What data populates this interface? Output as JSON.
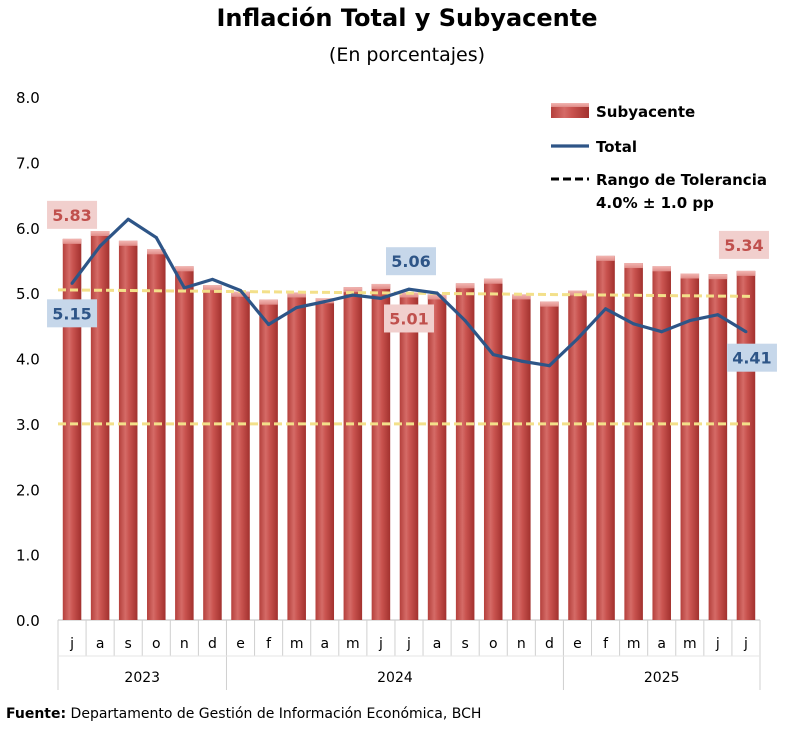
{
  "title": "Inflación Total y Subyacente",
  "subtitle": "(En porcentajes)",
  "source_label": "Fuente:",
  "source_text": "Departamento de Gestión de Información Económica, BCH",
  "chart_data": {
    "type": "bar",
    "ylim": [
      0,
      8
    ],
    "yticks": [
      "0.0",
      "1.0",
      "2.0",
      "3.0",
      "4.0",
      "5.0",
      "6.0",
      "7.0",
      "8.0"
    ],
    "categories": [
      "j",
      "a",
      "s",
      "o",
      "n",
      "d",
      "e",
      "f",
      "m",
      "a",
      "m",
      "j",
      "j",
      "a",
      "s",
      "o",
      "n",
      "d",
      "e",
      "f",
      "m",
      "a",
      "m",
      "j",
      "j"
    ],
    "years": [
      {
        "label": "2023",
        "start": 0,
        "end": 5
      },
      {
        "label": "2024",
        "start": 6,
        "end": 17
      },
      {
        "label": "2025",
        "start": 18,
        "end": 24
      }
    ],
    "series": [
      {
        "name": "Subyacente",
        "kind": "bar",
        "color": "#c0504d",
        "values": [
          5.83,
          5.95,
          5.8,
          5.67,
          5.41,
          5.12,
          5.02,
          4.9,
          5.01,
          4.92,
          5.09,
          5.14,
          5.01,
          4.98,
          5.15,
          5.22,
          4.98,
          4.87,
          5.04,
          5.57,
          5.46,
          5.41,
          5.3,
          5.29,
          5.34
        ]
      },
      {
        "name": "Total",
        "kind": "line",
        "color": "#2e5587",
        "values": [
          5.15,
          5.72,
          6.13,
          5.85,
          5.08,
          5.21,
          5.04,
          4.52,
          4.78,
          4.87,
          4.97,
          4.92,
          5.06,
          5.0,
          4.58,
          4.06,
          3.96,
          3.89,
          4.3,
          4.76,
          4.53,
          4.41,
          4.58,
          4.67,
          4.41
        ]
      }
    ],
    "tolerance": {
      "label_line1": "Rango de Tolerancia",
      "label_line2": "4.0% ± 1.0 pp",
      "lower": 3.0,
      "upper_start": 5.05,
      "upper_end": 4.95,
      "color": "#f3e08a"
    },
    "callouts": [
      {
        "value": "5.83",
        "series": "Subyacente",
        "index": 0
      },
      {
        "value": "5.15",
        "series": "Total",
        "index": 0
      },
      {
        "value": "5.06",
        "series": "Total",
        "index": 12
      },
      {
        "value": "5.01",
        "series": "Subyacente",
        "index": 12
      },
      {
        "value": "5.34",
        "series": "Subyacente",
        "index": 24
      },
      {
        "value": "4.41",
        "series": "Total",
        "index": 24
      }
    ],
    "legend_position": "top-right"
  }
}
